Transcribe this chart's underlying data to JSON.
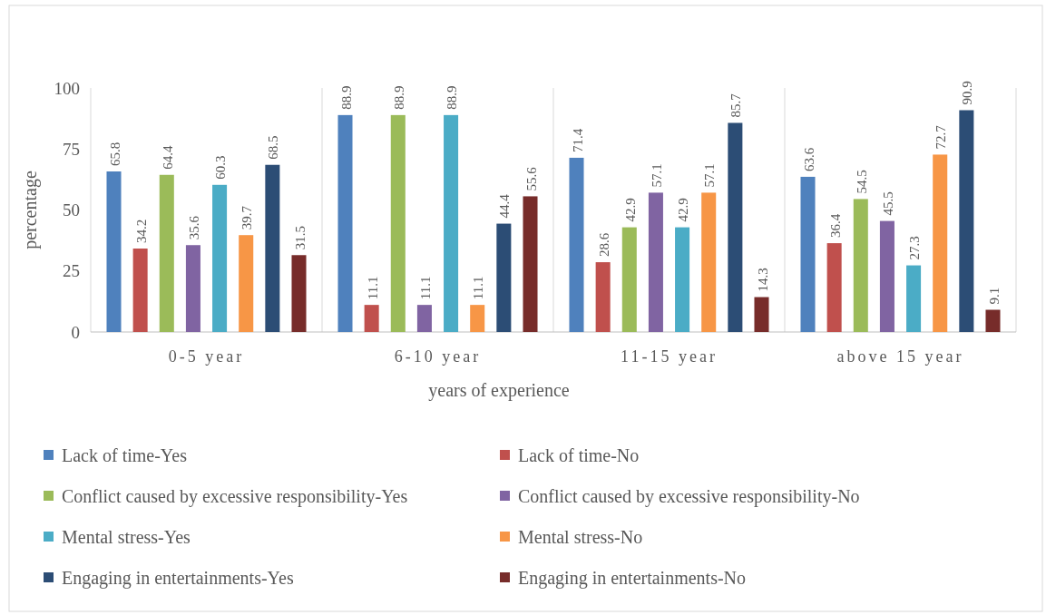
{
  "chart_data": {
    "type": "bar",
    "xlabel": "years of experience",
    "ylabel": "percentage",
    "categories": [
      "0-5 year",
      "6-10 year",
      "11-15 year",
      "above 15 year"
    ],
    "series": [
      {
        "name": "Lack of time-Yes",
        "color": "#4f81bd",
        "values": [
          65.8,
          88.9,
          71.4,
          63.6
        ]
      },
      {
        "name": "Lack of time-No",
        "color": "#c0504d",
        "values": [
          34.2,
          11.1,
          28.6,
          36.4
        ]
      },
      {
        "name": "Conflict caused by excessive responsibility-Yes",
        "color": "#9bbb59",
        "values": [
          64.4,
          88.9,
          42.9,
          54.5
        ]
      },
      {
        "name": "Conflict caused by excessive responsibility-No",
        "color": "#8064a2",
        "values": [
          35.6,
          11.1,
          57.1,
          45.5
        ]
      },
      {
        "name": "Mental stress-Yes",
        "color": "#4bacc6",
        "values": [
          60.3,
          88.9,
          42.9,
          27.3
        ]
      },
      {
        "name": "Mental stress-No",
        "color": "#f79646",
        "values": [
          39.7,
          11.1,
          57.1,
          72.7
        ]
      },
      {
        "name": "Engaging in entertainments-Yes",
        "color": "#2c4d75",
        "values": [
          68.5,
          44.4,
          85.7,
          90.9
        ]
      },
      {
        "name": "Engaging in entertainments-No",
        "color": "#772c2a",
        "values": [
          31.5,
          55.6,
          14.3,
          9.1
        ]
      }
    ],
    "ylim": [
      0,
      100
    ],
    "yticks": [
      0,
      25,
      50,
      75,
      100
    ],
    "grid": "x",
    "data_labels": true,
    "legend": "bottom"
  }
}
